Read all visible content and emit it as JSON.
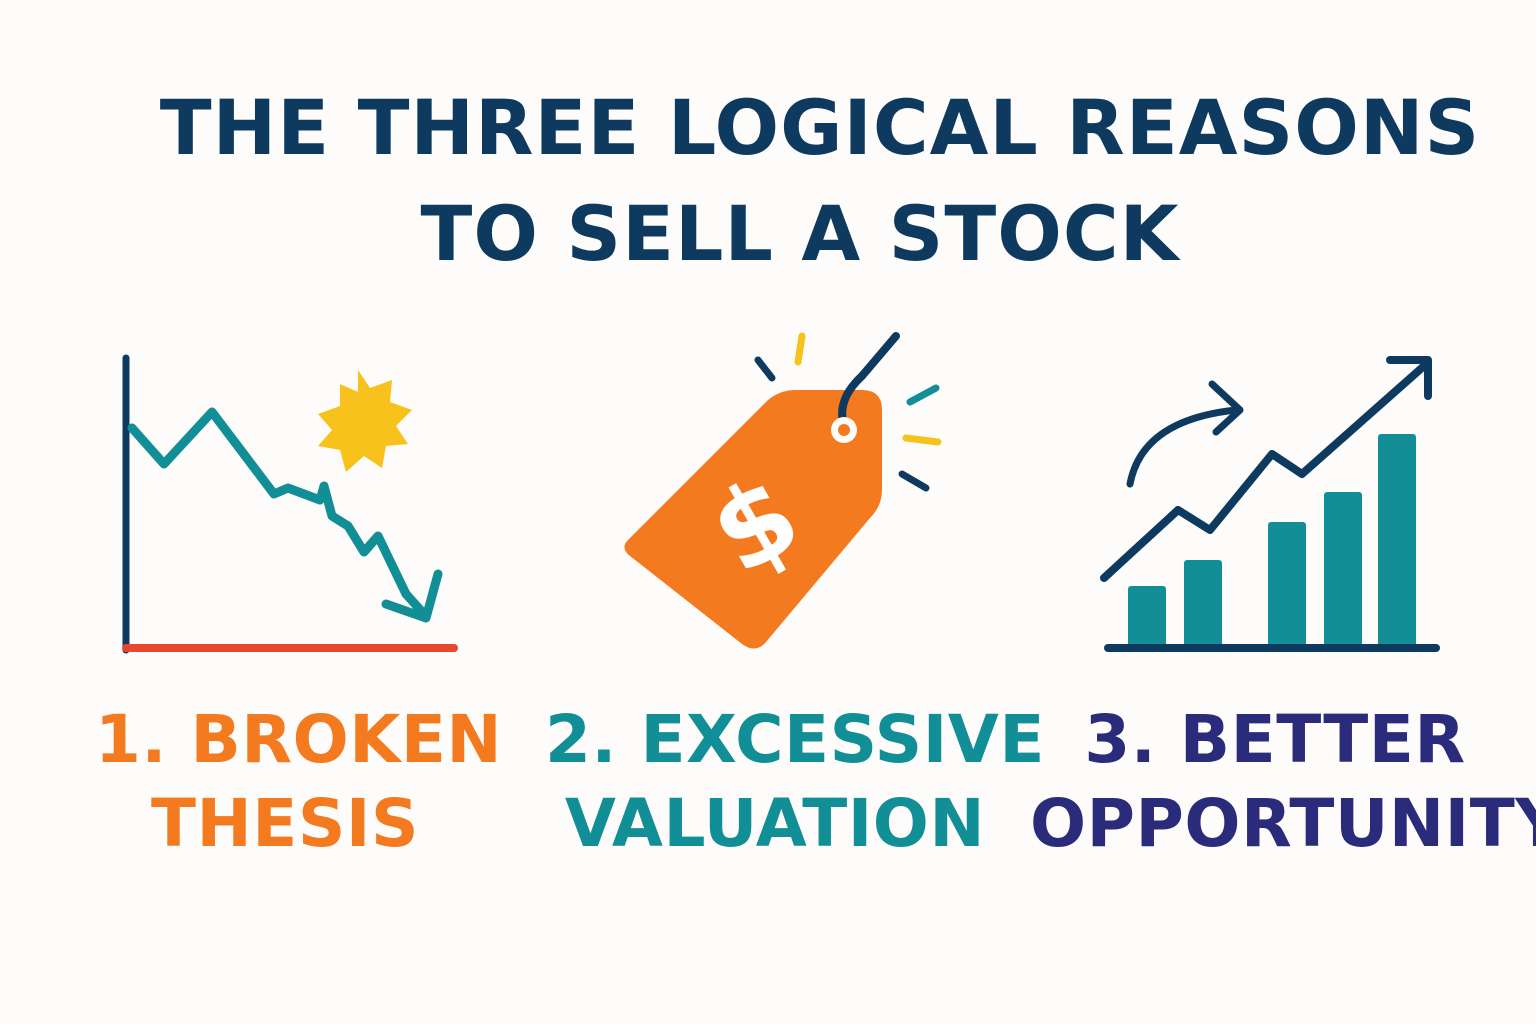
{
  "title": {
    "line1": "THE THREE LOGICAL REASONS",
    "line2": "TO SELL A STOCK"
  },
  "reasons": [
    {
      "icon": "falling-chart-with-burst-icon",
      "line1": "1. BROKEN",
      "line2": "THESIS",
      "color": "#f47a20"
    },
    {
      "icon": "price-tag-dollar-icon",
      "tag_symbol": "$",
      "line1": "2. EXCESSIVE",
      "line2": "VALUATION",
      "color": "#128f96"
    },
    {
      "icon": "rising-bar-chart-icon",
      "line1": "3. BETTER",
      "line2": "OPPORTUNITY",
      "color": "#2a2b7a"
    }
  ],
  "colors": {
    "navy": "#0f3a5f",
    "teal": "#128f96",
    "orange": "#f47a20",
    "red": "#e8472e",
    "yellow": "#f8c21c",
    "indigo": "#2a2b7a",
    "background": "#fdfcfa"
  }
}
